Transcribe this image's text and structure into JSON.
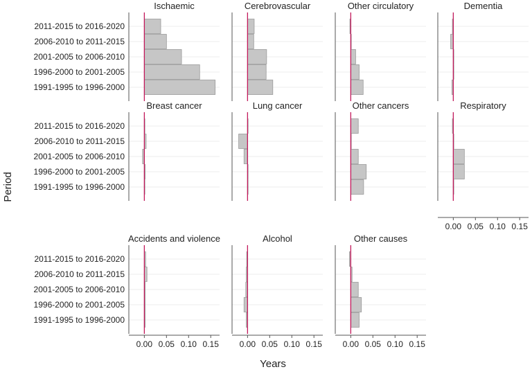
{
  "chart_data": {
    "type": "bar",
    "orientation": "horizontal",
    "ylabel": "Period",
    "xlabel": "Years",
    "xlim": [
      -0.035,
      0.17
    ],
    "xticks": [
      "0.00",
      "0.05",
      "0.10",
      "0.15"
    ],
    "tick_values": [
      0,
      0.05,
      0.1,
      0.15
    ],
    "categories": [
      "2011-2015 to 2016-2020",
      "2006-2010 to 2011-2015",
      "2001-2005 to 2006-2010",
      "1996-2000 to 2001-2005",
      "1991-1995 to 1996-2000"
    ],
    "colors": {
      "bar_fill": "#c6c6c6",
      "bar_edge": "#9a9a9a",
      "zero_line": "#c2185b",
      "grid": "#ececec",
      "axis": "#555555",
      "text": "#222222"
    },
    "panels": [
      {
        "title": "Ischaemic",
        "values": [
          0.037,
          0.05,
          0.084,
          0.125,
          0.16
        ]
      },
      {
        "title": "Cerebrovascular",
        "values": [
          0.015,
          0.014,
          0.043,
          0.042,
          0.057
        ]
      },
      {
        "title": "Other circulatory",
        "values": [
          -0.002,
          0.0,
          0.011,
          0.019,
          0.028
        ]
      },
      {
        "title": "Dementia",
        "values": [
          -0.002,
          -0.006,
          0.0,
          0.0,
          -0.003
        ]
      },
      {
        "title": "Breast cancer",
        "values": [
          0.001,
          0.004,
          -0.004,
          0.002,
          0.0
        ]
      },
      {
        "title": "Lung cancer",
        "values": [
          0.0,
          -0.02,
          -0.008,
          0.0,
          0.0
        ]
      },
      {
        "title": "Other cancers",
        "values": [
          0.017,
          0.0,
          0.017,
          0.035,
          0.029
        ]
      },
      {
        "title": "Respiratory",
        "values": [
          -0.002,
          0.0,
          0.025,
          0.025,
          0.0
        ]
      },
      {
        "title": "Accidents and violence",
        "values": [
          0.003,
          0.006,
          0.002,
          0.002,
          0.002
        ]
      },
      {
        "title": "Alcohol",
        "values": [
          -0.002,
          -0.003,
          -0.004,
          -0.008,
          -0.003
        ]
      },
      {
        "title": "Other causes",
        "values": [
          -0.003,
          0.003,
          0.017,
          0.024,
          0.019
        ]
      }
    ]
  }
}
